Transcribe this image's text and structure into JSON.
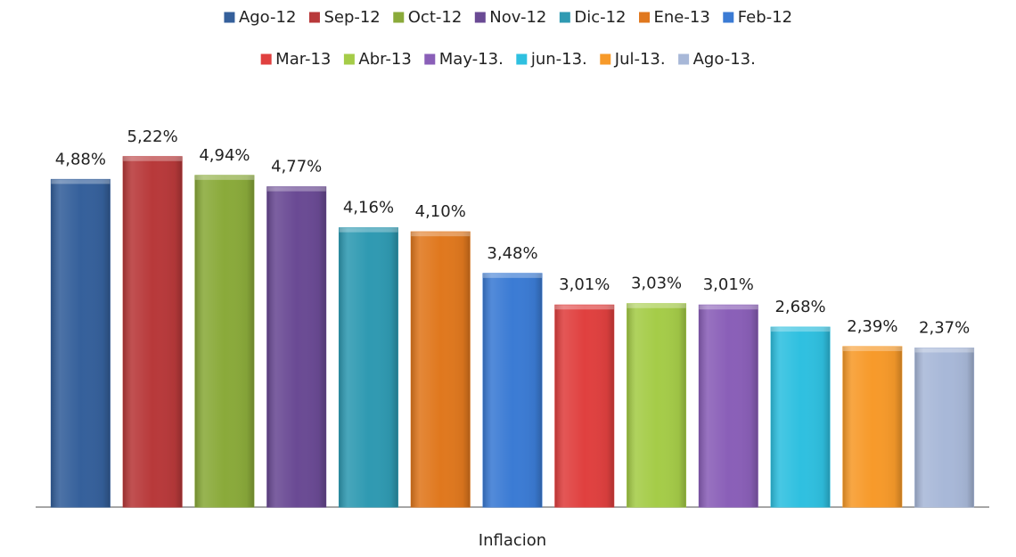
{
  "chart_data": {
    "type": "bar",
    "x_label": "Inflacion",
    "categories": [
      "Inflacion"
    ],
    "ylim": [
      0,
      6
    ],
    "legend": "top",
    "series": [
      {
        "name": "Ago-12",
        "color": "#35609b",
        "values": [
          4.88
        ],
        "value_labels": [
          "4,88%"
        ]
      },
      {
        "name": "Sep-12",
        "color": "#b8393a",
        "values": [
          5.22
        ],
        "value_labels": [
          "5,22%"
        ]
      },
      {
        "name": "Oct-12",
        "color": "#8aaa3a",
        "values": [
          4.94
        ],
        "value_labels": [
          "4,94%"
        ]
      },
      {
        "name": "Nov-12",
        "color": "#6a4a94",
        "values": [
          4.77
        ],
        "value_labels": [
          "4,77%"
        ]
      },
      {
        "name": "Dic-12",
        "color": "#2f9ab2",
        "values": [
          4.16
        ],
        "value_labels": [
          "4,16%"
        ]
      },
      {
        "name": "Ene-13",
        "color": "#e0781e",
        "values": [
          4.1
        ],
        "value_labels": [
          "4,10%"
        ]
      },
      {
        "name": "Feb-12",
        "color": "#3b7bd4",
        "values": [
          3.48
        ],
        "value_labels": [
          "3,48%"
        ]
      },
      {
        "name": "Mar-13",
        "color": "#e0403f",
        "values": [
          3.01
        ],
        "value_labels": [
          "3,01%"
        ]
      },
      {
        "name": "Abr-13",
        "color": "#a5cc48",
        "values": [
          3.03
        ],
        "value_labels": [
          "3,03%"
        ]
      },
      {
        "name": "May-13.",
        "color": "#8a5fb8",
        "values": [
          3.01
        ],
        "value_labels": [
          "3,01%"
        ]
      },
      {
        "name": "jun-13.",
        "color": "#2fc0e0",
        "values": [
          2.68
        ],
        "value_labels": [
          "2,68%"
        ]
      },
      {
        "name": "Jul-13.",
        "color": "#f79a2a",
        "values": [
          2.39
        ],
        "value_labels": [
          "2,39%"
        ]
      },
      {
        "name": "Ago-13.",
        "color": "#a8b8d8",
        "values": [
          2.37
        ],
        "value_labels": [
          "2,37%"
        ]
      }
    ]
  }
}
